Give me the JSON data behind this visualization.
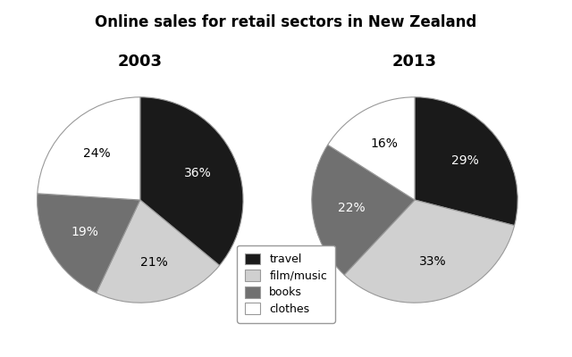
{
  "title": "Online sales for retail sectors in New Zealand",
  "year_2003": {
    "label": "2003",
    "values": [
      36,
      21,
      19,
      24
    ],
    "labels": [
      "36%",
      "21%",
      "19%",
      "24%"
    ],
    "categories": [
      "travel",
      "film/music",
      "books",
      "clothes"
    ],
    "colors": [
      "#1a1a1a",
      "#d0d0d0",
      "#707070",
      "#ffffff"
    ],
    "startangle": 90
  },
  "year_2013": {
    "label": "2013",
    "values": [
      29,
      33,
      22,
      16
    ],
    "labels": [
      "29%",
      "33%",
      "22%",
      "16%"
    ],
    "categories": [
      "travel",
      "film/music",
      "books",
      "clothes"
    ],
    "colors": [
      "#1a1a1a",
      "#d0d0d0",
      "#707070",
      "#ffffff"
    ],
    "startangle": 90
  },
  "legend_categories": [
    "travel",
    "film/music",
    "books",
    "clothes"
  ],
  "legend_colors": [
    "#1a1a1a",
    "#d0d0d0",
    "#707070",
    "#ffffff"
  ],
  "title_fontsize": 12,
  "year_fontsize": 13,
  "pct_fontsize": 10,
  "background_color": "#ffffff",
  "edge_color": "#999999"
}
